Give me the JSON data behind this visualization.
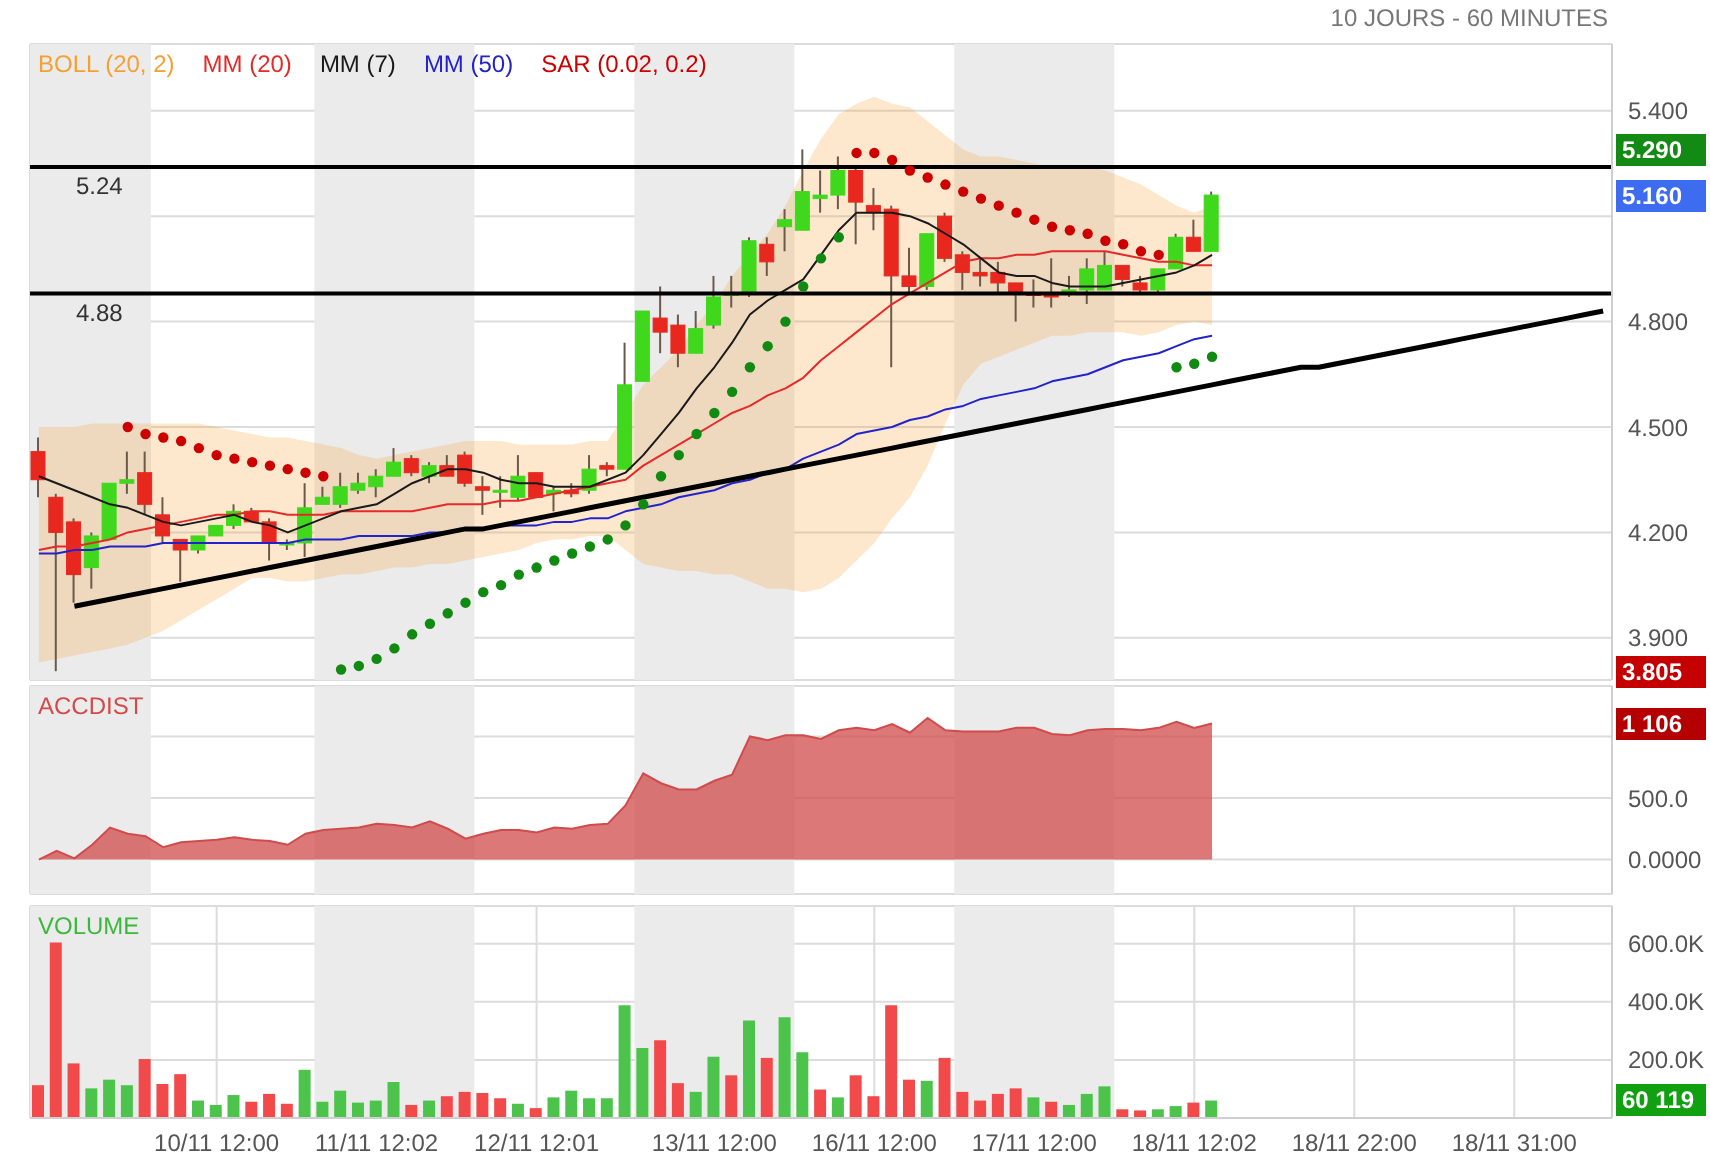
{
  "chart_data": [
    {
      "type": "candlestick",
      "title": "10 JOURS - 60 MINUTES",
      "legend": "top left",
      "grid": true,
      "tick_labels": "y",
      "categories": [
        null,
        null,
        null,
        null,
        null,
        null,
        null,
        null,
        null,
        null,
        null,
        null,
        null,
        null,
        null,
        null,
        null,
        null,
        null,
        null,
        null,
        null,
        null,
        null,
        null,
        null,
        null,
        null,
        null,
        null,
        null,
        null,
        null,
        null,
        null,
        null,
        null,
        null,
        null,
        null,
        null,
        null,
        null,
        null,
        null,
        null,
        null,
        null,
        null,
        null,
        null,
        null,
        null,
        null,
        null,
        null,
        null,
        null,
        null,
        null,
        null,
        null,
        null,
        null,
        null,
        null,
        null,
        null,
        null,
        null,
        null,
        null,
        null,
        null,
        null,
        null,
        null,
        null,
        null,
        null,
        null,
        null,
        null,
        null,
        null,
        null,
        null,
        null,
        null
      ],
      "ohlc": [
        [
          4.43,
          4.47,
          4.3,
          4.35
        ],
        [
          4.3,
          4.31,
          3.805,
          4.2
        ],
        [
          4.23,
          4.24,
          4.0,
          4.08
        ],
        [
          4.1,
          4.2,
          4.04,
          4.19
        ],
        [
          4.18,
          4.34,
          4.18,
          4.34
        ],
        [
          4.34,
          4.43,
          4.31,
          4.35
        ],
        [
          4.37,
          4.43,
          4.25,
          4.28
        ],
        [
          4.25,
          4.3,
          4.17,
          4.19
        ],
        [
          4.18,
          4.18,
          4.06,
          4.15
        ],
        [
          4.15,
          4.19,
          4.14,
          4.19
        ],
        [
          4.19,
          4.22,
          4.19,
          4.22
        ],
        [
          4.22,
          4.28,
          4.21,
          4.26
        ],
        [
          4.26,
          4.27,
          4.23,
          4.23
        ],
        [
          4.23,
          4.24,
          4.12,
          4.17
        ],
        [
          4.17,
          4.18,
          4.15,
          4.17
        ],
        [
          4.17,
          4.34,
          4.13,
          4.27
        ],
        [
          4.28,
          4.33,
          4.28,
          4.3
        ],
        [
          4.28,
          4.37,
          4.27,
          4.33
        ],
        [
          4.32,
          4.37,
          4.31,
          4.34
        ],
        [
          4.33,
          4.38,
          4.3,
          4.36
        ],
        [
          4.36,
          4.44,
          4.36,
          4.4
        ],
        [
          4.41,
          4.42,
          4.36,
          4.37
        ],
        [
          4.36,
          4.4,
          4.34,
          4.39
        ],
        [
          4.39,
          4.42,
          4.36,
          4.36
        ],
        [
          4.42,
          4.43,
          4.33,
          4.34
        ],
        [
          4.33,
          4.36,
          4.25,
          4.32
        ],
        [
          4.32,
          4.36,
          4.27,
          4.32
        ],
        [
          4.3,
          4.42,
          4.29,
          4.36
        ],
        [
          4.37,
          4.37,
          4.3,
          4.3
        ],
        [
          4.31,
          4.33,
          4.26,
          4.32
        ],
        [
          4.32,
          4.34,
          4.3,
          4.31
        ],
        [
          4.32,
          4.42,
          4.31,
          4.38
        ],
        [
          4.39,
          4.4,
          4.36,
          4.38
        ],
        [
          4.38,
          4.74,
          4.38,
          4.62
        ],
        [
          4.63,
          4.83,
          4.63,
          4.83
        ],
        [
          4.81,
          4.9,
          4.71,
          4.77
        ],
        [
          4.79,
          4.82,
          4.67,
          4.71
        ],
        [
          4.71,
          4.83,
          4.71,
          4.78
        ],
        [
          4.79,
          4.93,
          4.78,
          4.87
        ],
        [
          4.88,
          4.93,
          4.84,
          4.88
        ],
        [
          4.88,
          5.04,
          4.87,
          5.03
        ],
        [
          5.02,
          5.04,
          4.93,
          4.97
        ],
        [
          5.07,
          5.12,
          5.0,
          5.09
        ],
        [
          5.06,
          5.29,
          5.06,
          5.17
        ],
        [
          5.15,
          5.23,
          5.11,
          5.16
        ],
        [
          5.16,
          5.27,
          5.12,
          5.23
        ],
        [
          5.23,
          5.24,
          5.02,
          5.14
        ],
        [
          5.13,
          5.18,
          5.06,
          5.11
        ],
        [
          5.12,
          5.13,
          4.67,
          4.93
        ],
        [
          4.93,
          5.01,
          4.88,
          4.9
        ],
        [
          4.9,
          5.05,
          4.89,
          5.05
        ],
        [
          5.1,
          5.11,
          4.97,
          4.98
        ],
        [
          4.99,
          5.0,
          4.89,
          4.94
        ],
        [
          4.94,
          4.98,
          4.9,
          4.93
        ],
        [
          4.94,
          4.97,
          4.88,
          4.91
        ],
        [
          4.91,
          4.91,
          4.8,
          4.88
        ],
        [
          4.88,
          4.92,
          4.84,
          4.88
        ],
        [
          4.88,
          4.98,
          4.84,
          4.87
        ],
        [
          4.88,
          4.93,
          4.87,
          4.89
        ],
        [
          4.89,
          4.98,
          4.85,
          4.95
        ],
        [
          4.89,
          5.0,
          4.89,
          4.96
        ],
        [
          4.96,
          4.96,
          4.9,
          4.92
        ],
        [
          4.91,
          4.93,
          4.88,
          4.89
        ],
        [
          4.89,
          4.95,
          4.88,
          4.95
        ],
        [
          4.95,
          5.05,
          4.95,
          5.04
        ],
        [
          5.04,
          5.09,
          5.0,
          5.0
        ],
        [
          5.0,
          5.17,
          5.0,
          5.16
        ],
        null,
        null,
        null,
        null,
        null,
        null,
        null,
        null,
        null,
        null,
        null,
        null,
        null,
        null,
        null,
        null,
        null,
        null,
        null,
        null,
        null,
        null
      ],
      "colors": [
        "#e8281e",
        "#e8281e",
        "#e8281e",
        "#40d81c",
        "#40d81c",
        "#40d81c",
        "#e8281e",
        "#e8281e",
        "#e8281e",
        "#40d81c",
        "#40d81c",
        "#40d81c",
        "#e8281e",
        "#e8281e",
        "#40d81c",
        "#40d81c",
        "#40d81c",
        "#40d81c",
        "#40d81c",
        "#40d81c",
        "#40d81c",
        "#e8281e",
        "#40d81c",
        "#e8281e",
        "#e8281e",
        "#e8281e",
        "#40d81c",
        "#40d81c",
        "#e8281e",
        "#40d81c",
        "#e8281e",
        "#40d81c",
        "#e8281e",
        "#40d81c",
        "#40d81c",
        "#e8281e",
        "#e8281e",
        "#40d81c",
        "#40d81c",
        "#40d81c",
        "#40d81c",
        "#e8281e",
        "#40d81c",
        "#40d81c",
        "#40d81c",
        "#40d81c",
        "#e8281e",
        "#e8281e",
        "#e8281e",
        "#e8281e",
        "#40d81c",
        "#e8281e",
        "#e8281e",
        "#e8281e",
        "#e8281e",
        "#e8281e",
        "#e8281e",
        "#e8281e",
        "#40d81c",
        "#40d81c",
        "#40d81c",
        "#e8281e",
        "#e8281e",
        "#40d81c",
        "#40d81c",
        "#e8281e",
        "#40d81c",
        null,
        null,
        null,
        null,
        null,
        null,
        null,
        null,
        null,
        null,
        null,
        null,
        null,
        null,
        null,
        null,
        null,
        null,
        null,
        null,
        null,
        null
      ],
      "series": [
        {
          "name": "BOLL (20, 2)",
          "type": "area",
          "color": "#f5a033",
          "values": [
            null,
            null,
            null,
            null,
            null,
            null,
            null,
            null,
            null,
            null,
            null,
            null,
            null,
            null,
            null,
            null,
            null,
            null,
            null,
            null,
            null,
            null,
            null,
            null,
            null,
            null,
            null,
            null,
            null,
            null,
            null,
            null,
            null,
            null,
            null,
            null,
            null,
            null,
            null,
            null,
            null,
            null,
            null,
            null,
            null,
            null,
            null,
            null,
            null,
            null,
            null,
            null,
            null,
            null,
            null,
            null,
            null,
            null,
            null,
            null,
            null,
            null,
            null,
            null,
            null,
            null,
            null,
            null,
            null,
            null,
            null,
            null,
            null,
            null,
            null,
            null,
            null,
            null,
            null,
            null,
            null,
            null,
            null,
            null,
            null,
            null,
            null,
            null,
            null
          ],
          "upper": [
            4.5,
            4.5,
            4.5,
            4.51,
            4.51,
            4.51,
            4.51,
            4.51,
            4.51,
            4.51,
            4.5,
            4.49,
            4.48,
            4.47,
            4.47,
            4.46,
            4.45,
            4.44,
            4.42,
            4.41,
            4.42,
            4.43,
            4.44,
            4.45,
            4.46,
            4.46,
            4.46,
            4.45,
            4.45,
            4.45,
            4.45,
            4.46,
            4.46,
            4.54,
            4.62,
            4.67,
            4.72,
            4.79,
            4.85,
            4.93,
            4.99,
            5.05,
            5.13,
            5.23,
            5.32,
            5.39,
            5.42,
            5.44,
            5.42,
            5.41,
            5.37,
            5.33,
            5.29,
            5.27,
            5.27,
            5.26,
            5.25,
            5.24,
            5.24,
            5.24,
            5.23,
            5.21,
            5.19,
            5.16,
            5.13,
            5.11,
            5.13,
            null,
            null,
            null,
            null,
            null,
            null,
            null,
            null,
            null,
            null,
            null,
            null,
            null,
            null,
            null,
            null,
            null,
            null,
            null,
            null,
            null,
            null
          ],
          "lower": [
            3.83,
            3.84,
            3.85,
            3.86,
            3.87,
            3.88,
            3.9,
            3.92,
            3.95,
            3.98,
            4.01,
            4.04,
            4.07,
            4.07,
            4.06,
            4.06,
            4.07,
            4.08,
            4.08,
            4.09,
            4.1,
            4.1,
            4.11,
            4.11,
            4.12,
            4.13,
            4.14,
            4.15,
            4.17,
            4.18,
            4.18,
            4.19,
            4.19,
            4.15,
            4.11,
            4.1,
            4.09,
            4.09,
            4.08,
            4.08,
            4.06,
            4.04,
            4.04,
            4.03,
            4.04,
            4.07,
            4.12,
            4.17,
            4.24,
            4.3,
            4.39,
            4.51,
            4.62,
            4.68,
            4.7,
            4.72,
            4.74,
            4.76,
            4.76,
            4.77,
            4.77,
            4.77,
            4.76,
            4.77,
            4.79,
            4.8,
            4.79,
            null,
            null,
            null,
            null,
            null,
            null,
            null,
            null,
            null,
            null,
            null,
            null,
            null,
            null,
            null,
            null,
            null,
            null,
            null,
            null,
            null,
            null
          ]
        },
        {
          "name": "MM (20)",
          "type": "line",
          "color": "#e52a2a",
          "values": [
            4.15,
            4.16,
            4.16,
            4.17,
            4.18,
            4.2,
            4.21,
            4.22,
            4.23,
            4.24,
            4.25,
            4.25,
            4.26,
            4.26,
            4.25,
            4.25,
            4.25,
            4.26,
            4.26,
            4.26,
            4.26,
            4.26,
            4.27,
            4.28,
            4.28,
            4.28,
            4.29,
            4.29,
            4.3,
            4.31,
            4.32,
            4.33,
            4.34,
            4.35,
            4.39,
            4.42,
            4.45,
            4.48,
            4.51,
            4.54,
            4.56,
            4.59,
            4.61,
            4.64,
            4.69,
            4.73,
            4.77,
            4.81,
            4.85,
            4.88,
            4.91,
            4.94,
            4.97,
            4.98,
            4.98,
            4.99,
            4.99,
            5.0,
            5.0,
            5.0,
            5.0,
            4.99,
            4.98,
            4.97,
            4.97,
            4.96,
            4.96,
            null,
            null,
            null,
            null,
            null,
            null,
            null,
            null,
            null,
            null,
            null,
            null,
            null,
            null,
            null,
            null,
            null,
            null,
            null,
            null,
            null,
            null
          ]
        },
        {
          "name": "MM (7)",
          "type": "line",
          "color": "#1a1a1a",
          "values": [
            4.36,
            4.34,
            4.32,
            4.3,
            4.28,
            4.27,
            4.25,
            4.23,
            4.22,
            4.23,
            4.24,
            4.25,
            4.23,
            4.22,
            4.2,
            4.22,
            4.24,
            4.26,
            4.27,
            4.28,
            4.31,
            4.34,
            4.36,
            4.38,
            4.38,
            4.37,
            4.35,
            4.34,
            4.34,
            4.33,
            4.33,
            4.33,
            4.35,
            4.37,
            4.42,
            4.48,
            4.54,
            4.61,
            4.67,
            4.74,
            4.82,
            4.86,
            4.89,
            4.92,
            4.99,
            5.06,
            5.11,
            5.11,
            5.11,
            5.1,
            5.08,
            5.05,
            5.02,
            4.98,
            4.94,
            4.93,
            4.93,
            4.91,
            4.9,
            4.9,
            4.9,
            4.91,
            4.92,
            4.93,
            4.94,
            4.96,
            4.99,
            null,
            null,
            null,
            null,
            null,
            null,
            null,
            null,
            null,
            null,
            null,
            null,
            null,
            null,
            null,
            null,
            null,
            null,
            null,
            null,
            null,
            null
          ]
        },
        {
          "name": "MM (50)",
          "type": "line",
          "color": "#2323cc",
          "values": [
            4.14,
            4.14,
            4.15,
            4.15,
            4.16,
            4.16,
            4.16,
            4.17,
            4.17,
            4.17,
            4.17,
            4.17,
            4.17,
            4.17,
            4.17,
            4.18,
            4.18,
            4.18,
            4.19,
            4.19,
            4.19,
            4.19,
            4.2,
            4.2,
            4.21,
            4.21,
            4.22,
            4.22,
            4.22,
            4.23,
            4.23,
            4.24,
            4.24,
            4.26,
            4.27,
            4.28,
            4.3,
            4.31,
            4.32,
            4.34,
            4.35,
            4.37,
            4.38,
            4.41,
            4.43,
            4.45,
            4.48,
            4.49,
            4.5,
            4.52,
            4.53,
            4.55,
            4.56,
            4.58,
            4.59,
            4.6,
            4.61,
            4.63,
            4.64,
            4.65,
            4.67,
            4.69,
            4.7,
            4.71,
            4.73,
            4.75,
            4.76,
            null,
            null,
            null,
            null,
            null,
            null,
            null,
            null,
            null,
            null,
            null,
            null,
            null,
            null,
            null,
            null,
            null,
            null,
            null,
            null,
            null,
            null
          ]
        },
        {
          "name": "SAR (0.02, 0.2)",
          "type": "scatter",
          "marker": "circle",
          "color": "#cc0000",
          "values": [
            null,
            null,
            null,
            null,
            null,
            4.5,
            4.48,
            4.47,
            4.46,
            4.44,
            4.42,
            4.41,
            4.4,
            4.39,
            4.38,
            4.37,
            4.36,
            3.81,
            3.82,
            3.84,
            3.87,
            3.91,
            3.94,
            3.97,
            4.0,
            4.03,
            4.05,
            4.08,
            4.1,
            4.12,
            4.14,
            4.16,
            4.18,
            4.22,
            4.28,
            4.36,
            4.42,
            4.48,
            4.54,
            4.6,
            4.67,
            4.73,
            4.8,
            4.9,
            4.98,
            5.04,
            5.28,
            5.28,
            5.26,
            5.23,
            5.21,
            5.19,
            5.17,
            5.15,
            5.13,
            5.11,
            5.09,
            5.07,
            5.06,
            5.05,
            5.03,
            5.02,
            5.0,
            4.99,
            4.67,
            4.68,
            4.7,
            null,
            null,
            null,
            null,
            null,
            null,
            null,
            null,
            null,
            null,
            null,
            null,
            null,
            null,
            null,
            null,
            null,
            null,
            null,
            null,
            null,
            null
          ],
          "colors": [
            null,
            null,
            null,
            null,
            null,
            "#cc0000",
            "#cc0000",
            "#cc0000",
            "#cc0000",
            "#cc0000",
            "#cc0000",
            "#cc0000",
            "#cc0000",
            "#cc0000",
            "#cc0000",
            "#cc0000",
            "#cc0000",
            "#118a11",
            "#118a11",
            "#118a11",
            "#118a11",
            "#118a11",
            "#118a11",
            "#118a11",
            "#118a11",
            "#118a11",
            "#118a11",
            "#118a11",
            "#118a11",
            "#118a11",
            "#118a11",
            "#118a11",
            "#118a11",
            "#118a11",
            "#118a11",
            "#118a11",
            "#118a11",
            "#118a11",
            "#118a11",
            "#118a11",
            "#118a11",
            "#118a11",
            "#118a11",
            "#118a11",
            "#118a11",
            "#118a11",
            "#cc0000",
            "#cc0000",
            "#cc0000",
            "#cc0000",
            "#cc0000",
            "#cc0000",
            "#cc0000",
            "#cc0000",
            "#cc0000",
            "#cc0000",
            "#cc0000",
            "#cc0000",
            "#cc0000",
            "#cc0000",
            "#cc0000",
            "#cc0000",
            "#cc0000",
            "#cc0000",
            "#118a11",
            "#118a11",
            "#118a11",
            null,
            null,
            null,
            null,
            null,
            null,
            null,
            null,
            null,
            null,
            null,
            null,
            null,
            null,
            null,
            null,
            null,
            null,
            null,
            null,
            null,
            null
          ]
        },
        {
          "type": "line",
          "color": "#000000",
          "values": [
            null,
            null,
            3.99,
            4.0,
            4.01,
            4.02,
            4.03,
            4.04,
            4.05,
            4.06,
            4.07,
            4.08,
            4.09,
            4.1,
            4.11,
            4.12,
            4.13,
            4.14,
            4.15,
            4.16,
            4.17,
            4.18,
            4.19,
            4.2,
            4.21,
            4.21,
            4.22,
            4.23,
            4.24,
            4.25,
            4.26,
            4.27,
            4.28,
            4.29,
            4.3,
            4.31,
            4.32,
            4.33,
            4.34,
            4.35,
            4.36,
            4.37,
            4.38,
            4.39,
            4.4,
            4.41,
            4.42,
            4.43,
            4.44,
            4.45,
            4.46,
            4.47,
            4.48,
            4.49,
            4.5,
            4.51,
            4.52,
            4.53,
            4.54,
            4.55,
            4.56,
            4.57,
            4.58,
            4.59,
            4.6,
            4.61,
            4.62,
            4.63,
            4.64,
            4.65,
            4.66,
            4.67,
            4.67,
            4.68,
            4.69,
            4.7,
            4.71,
            4.72,
            4.73,
            4.74,
            4.75,
            4.76,
            4.77,
            4.78,
            4.79,
            4.8,
            4.81,
            4.82,
            4.83
          ]
        }
      ],
      "ref_lines": [
        {
          "axis": "y",
          "value": 5.24,
          "label": "5.24",
          "color": "#000000"
        },
        {
          "axis": "y",
          "value": 4.88,
          "label": "4.88",
          "color": "#000000"
        }
      ],
      "annotations": [
        "5.290",
        "5.160",
        "3.805"
      ],
      "ylim": [
        3.78,
        5.59
      ],
      "yticks": [
        {
          "value": 3.9,
          "label": "3.900"
        },
        {
          "value": 4.2,
          "label": "4.200"
        },
        {
          "value": 4.5,
          "label": "4.500"
        },
        {
          "value": 4.8,
          "label": "4.800"
        },
        {
          "value": 5.1,
          "label": null
        },
        {
          "value": 5.4,
          "label": "5.400"
        }
      ]
    },
    {
      "type": "area",
      "legend": "top left",
      "grid": true,
      "tick_labels": "y",
      "categories": [
        null,
        null,
        null,
        null,
        null,
        null,
        null,
        null,
        null,
        null,
        null,
        null,
        null,
        null,
        null,
        null,
        null,
        null,
        null,
        null,
        null,
        null,
        null,
        null,
        null,
        null,
        null,
        null,
        null,
        null,
        null,
        null,
        null,
        null,
        null,
        null,
        null,
        null,
        null,
        null,
        null,
        null,
        null,
        null,
        null,
        null,
        null,
        null,
        null,
        null,
        null,
        null,
        null,
        null,
        null,
        null,
        null,
        null,
        null,
        null,
        null,
        null,
        null,
        null,
        null,
        null,
        null,
        null,
        null,
        null,
        null,
        null,
        null,
        null,
        null,
        null,
        null,
        null,
        null,
        null,
        null,
        null,
        null,
        null,
        null,
        null,
        null,
        null,
        null
      ],
      "series": [
        {
          "name": "ACCDIST",
          "color": "#d24b4b",
          "values": [
            0,
            70,
            10,
            120,
            260,
            210,
            190,
            100,
            140,
            150,
            160,
            180,
            160,
            150,
            120,
            210,
            240,
            250,
            260,
            290,
            280,
            260,
            310,
            250,
            170,
            210,
            240,
            240,
            220,
            260,
            250,
            280,
            290,
            440,
            700,
            620,
            570,
            570,
            640,
            690,
            1000,
            970,
            1010,
            1010,
            980,
            1050,
            1070,
            1050,
            1100,
            1030,
            1150,
            1050,
            1040,
            1040,
            1040,
            1070,
            1070,
            1020,
            1010,
            1050,
            1060,
            1060,
            1050,
            1070,
            1120,
            1070,
            1106,
            null,
            null,
            null,
            null,
            null,
            null,
            null,
            null,
            null,
            null,
            null,
            null,
            null,
            null,
            null,
            null,
            null,
            null,
            null,
            null,
            null,
            null
          ]
        }
      ],
      "annotations": [
        "1 106"
      ],
      "ylim": [
        -280,
        1410
      ],
      "yticks": [
        {
          "value": 0,
          "label": "0.0000"
        },
        {
          "value": 500,
          "label": "500.0"
        },
        {
          "value": 1000,
          "label": null
        }
      ]
    },
    {
      "type": "bar",
      "legend": "top left",
      "grid": true,
      "categories": [
        null,
        null,
        null,
        null,
        null,
        null,
        null,
        null,
        null,
        null,
        "10/11 12:00",
        null,
        null,
        null,
        null,
        null,
        null,
        null,
        null,
        "11/11 12:02",
        null,
        null,
        null,
        null,
        null,
        null,
        null,
        null,
        "12/11 12:01",
        null,
        null,
        null,
        null,
        null,
        null,
        null,
        null,
        null,
        "13/11 12:00",
        null,
        null,
        null,
        null,
        null,
        null,
        null,
        null,
        "16/11 12:00",
        null,
        null,
        null,
        null,
        null,
        null,
        null,
        null,
        "17/11 12:00",
        null,
        null,
        null,
        null,
        null,
        null,
        null,
        null,
        "18/11 12:02",
        null,
        null,
        null,
        null,
        null,
        null,
        null,
        null,
        "18/11 22:00",
        null,
        null,
        null,
        null,
        null,
        null,
        null,
        null,
        "18/11 31:00",
        null,
        null,
        null,
        null,
        null
      ],
      "series": [
        {
          "name": "VOLUME",
          "color": "#3cb83c",
          "values": [
            113000,
            604000,
            188000,
            102000,
            132000,
            113000,
            203000,
            117000,
            151000,
            60000,
            45000,
            79000,
            56000,
            83000,
            49000,
            166000,
            56000,
            94000,
            53000,
            60000,
            124000,
            45000,
            60000,
            75000,
            90000,
            86000,
            68000,
            49000,
            34000,
            71000,
            94000,
            68000,
            68000,
            388000,
            241000,
            268000,
            120000,
            90000,
            211000,
            147000,
            336000,
            207000,
            347000,
            226000,
            98000,
            71000,
            147000,
            75000,
            388000,
            132000,
            128000,
            207000,
            90000,
            60000,
            83000,
            102000,
            71000,
            56000,
            45000,
            83000,
            109000,
            30000,
            26000,
            30000,
            41000,
            53000,
            60119,
            null,
            null,
            null,
            null,
            null,
            null,
            null,
            null,
            null,
            null,
            null,
            null,
            null,
            null,
            null,
            null,
            null,
            null,
            null,
            null,
            null,
            null
          ],
          "colors": [
            "#f24a4a",
            "#f24a4a",
            "#f24a4a",
            "#4cc44c",
            "#4cc44c",
            "#4cc44c",
            "#f24a4a",
            "#f24a4a",
            "#f24a4a",
            "#4cc44c",
            "#4cc44c",
            "#4cc44c",
            "#f24a4a",
            "#f24a4a",
            "#f24a4a",
            "#4cc44c",
            "#4cc44c",
            "#4cc44c",
            "#4cc44c",
            "#4cc44c",
            "#4cc44c",
            "#f24a4a",
            "#4cc44c",
            "#f24a4a",
            "#f24a4a",
            "#f24a4a",
            "#f24a4a",
            "#4cc44c",
            "#f24a4a",
            "#4cc44c",
            "#4cc44c",
            "#4cc44c",
            "#4cc44c",
            "#4cc44c",
            "#4cc44c",
            "#f24a4a",
            "#f24a4a",
            "#4cc44c",
            "#4cc44c",
            "#f24a4a",
            "#4cc44c",
            "#f24a4a",
            "#4cc44c",
            "#4cc44c",
            "#f24a4a",
            "#4cc44c",
            "#f24a4a",
            "#f24a4a",
            "#f24a4a",
            "#f24a4a",
            "#4cc44c",
            "#f24a4a",
            "#f24a4a",
            "#f24a4a",
            "#f24a4a",
            "#f24a4a",
            "#4cc44c",
            "#f24a4a",
            "#4cc44c",
            "#4cc44c",
            "#4cc44c",
            "#f24a4a",
            "#f24a4a",
            "#4cc44c",
            "#4cc44c",
            "#f24a4a",
            "#4cc44c",
            null,
            null,
            null,
            null,
            null,
            null,
            null,
            null,
            null,
            null,
            null,
            null,
            null,
            null,
            null,
            null,
            null,
            null,
            null,
            null,
            null,
            null
          ]
        }
      ],
      "annotations": [
        "60 119"
      ],
      "ylim": [
        0,
        730000
      ],
      "yticks": [
        {
          "value": 200000,
          "label": "200.0K"
        },
        {
          "value": 400000,
          "label": "400.0K"
        },
        {
          "value": 600000,
          "label": "600.0K"
        }
      ]
    }
  ]
}
